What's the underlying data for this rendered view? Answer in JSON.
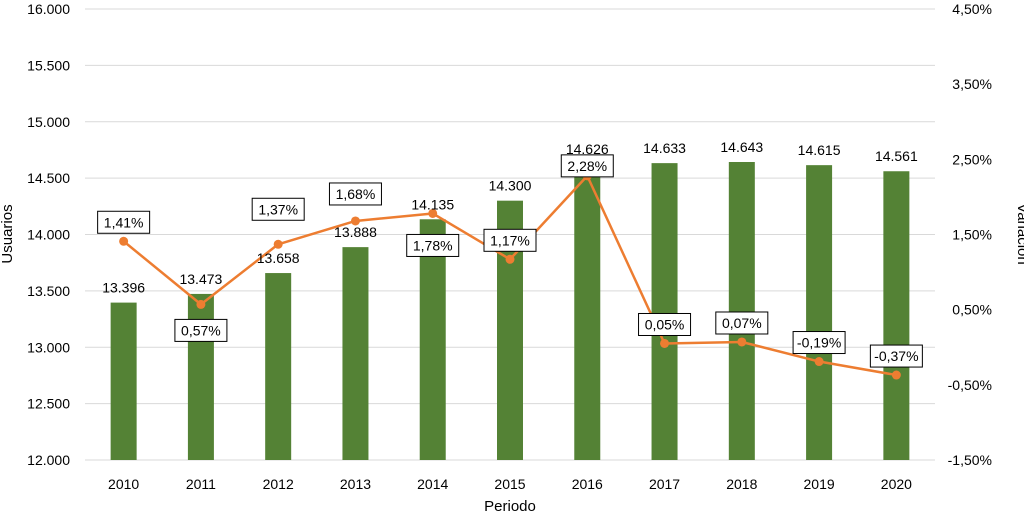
{
  "chart_data": {
    "type": "bar",
    "categories": [
      "2010",
      "2011",
      "2012",
      "2013",
      "2014",
      "2015",
      "2016",
      "2017",
      "2018",
      "2019",
      "2020"
    ],
    "series": [
      {
        "name": "Usuarios",
        "type": "bar",
        "axis": "left",
        "values": [
          13396,
          13473,
          13658,
          13888,
          14135,
          14300,
          14626,
          14633,
          14643,
          14615,
          14561
        ],
        "labels": [
          "13.396",
          "13.473",
          "13.658",
          "13.888",
          "14.135",
          "14.300",
          "14.626",
          "14.633",
          "14.643",
          "14.615",
          "14.561"
        ]
      },
      {
        "name": "Variación",
        "type": "line",
        "axis": "right",
        "values": [
          1.41,
          0.57,
          1.37,
          1.68,
          1.78,
          1.17,
          2.28,
          0.05,
          0.07,
          -0.19,
          -0.37
        ],
        "labels": [
          "1,41%",
          "0,57%",
          "1,37%",
          "1,68%",
          "1,78%",
          "1,17%",
          "2,28%",
          "0,05%",
          "0,07%",
          "-0,19%",
          "-0,37%"
        ]
      }
    ],
    "xlabel": "Periodo",
    "ylabel": "Usuarios",
    "y2label": "Variación",
    "ylim": [
      12000,
      16000
    ],
    "y2lim": [
      -1.5,
      4.5
    ],
    "yticks": [
      "12.000",
      "12.500",
      "13.000",
      "13.500",
      "14.000",
      "14.500",
      "15.000",
      "15.500",
      "16.000"
    ],
    "y2ticks": [
      "-1,50%",
      "-0,50%",
      "0,50%",
      "1,50%",
      "2,50%",
      "3,50%",
      "4,50%"
    ],
    "grid": true,
    "colors": {
      "bar": "#548235",
      "line": "#ed7d31"
    }
  }
}
